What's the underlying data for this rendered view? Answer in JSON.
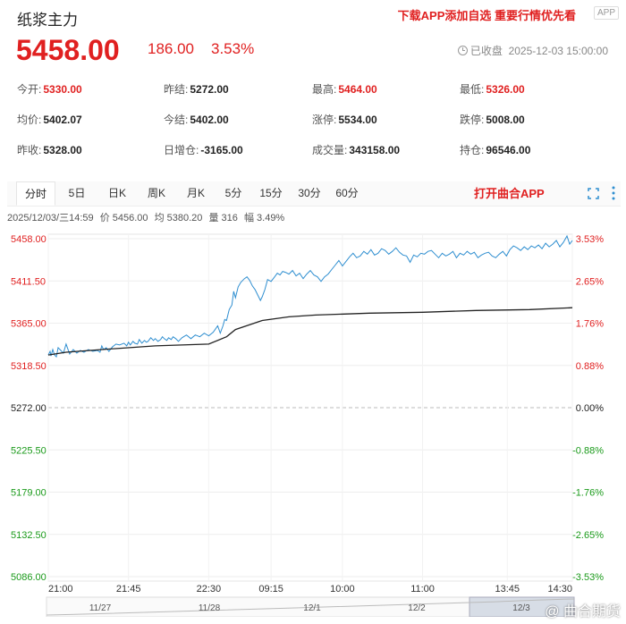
{
  "header": {
    "title": "纸浆主力",
    "promo": "下载APP添加自选 重要行情优先看",
    "badge": "APP"
  },
  "quote": {
    "price": "5458.00",
    "change": "186.00",
    "change_pct": "3.53%",
    "status": "已收盘",
    "datetime": "2025-12-03 15:00:00"
  },
  "stats": [
    {
      "label": "今开:",
      "value": "5330.00",
      "color": "red"
    },
    {
      "label": "昨结:",
      "value": "5272.00",
      "color": "black"
    },
    {
      "label": "最高:",
      "value": "5464.00",
      "color": "red"
    },
    {
      "label": "最低:",
      "value": "5326.00",
      "color": "red"
    },
    {
      "label": "均价:",
      "value": "5402.07",
      "color": "black"
    },
    {
      "label": "今结:",
      "value": "5402.00",
      "color": "black"
    },
    {
      "label": "涨停:",
      "value": "5534.00",
      "color": "black"
    },
    {
      "label": "跌停:",
      "value": "5008.00",
      "color": "black"
    },
    {
      "label": "昨收:",
      "value": "5328.00",
      "color": "black"
    },
    {
      "label": "日增仓:",
      "value": "-3165.00",
      "color": "black"
    },
    {
      "label": "成交量:",
      "value": "343158.00",
      "color": "black"
    },
    {
      "label": "持仓:",
      "value": "96546.00",
      "color": "black"
    }
  ],
  "tabs": [
    "分时",
    "5日",
    "日K",
    "周K",
    "月K",
    "5分",
    "15分",
    "30分",
    "60分"
  ],
  "active_tab": "分时",
  "open_app": "打开曲合APP",
  "info": {
    "time": "2025/12/03/三14:59",
    "price": "价 5456.00",
    "avg": "均 5380.20",
    "vol": "量 316",
    "pct": "幅 3.49%"
  },
  "chart_data": {
    "type": "line",
    "y_left_ticks": [
      "5458.00",
      "5411.50",
      "5365.00",
      "5318.50",
      "5272.00",
      "5225.50",
      "5179.00",
      "5132.50",
      "5086.00"
    ],
    "y_right_ticks": [
      "3.53%",
      "2.65%",
      "1.76%",
      "0.88%",
      "0.00%",
      "-0.88%",
      "-1.76%",
      "-2.65%",
      "-3.53%"
    ],
    "ylim": [
      5086,
      5458
    ],
    "x_ticks": [
      "21:00",
      "21:45",
      "22:30",
      "09:15",
      "10:00",
      "11:00",
      "13:45",
      "14:30"
    ],
    "navigator_labels": [
      "11/27",
      "11/28",
      "12/1",
      "12/2",
      "12/3"
    ],
    "series": [
      {
        "name": "价",
        "color": "#2e8ed0",
        "x": [
          0,
          2,
          3,
          5,
          7,
          9,
          11,
          14,
          17,
          20,
          24,
          28,
          32,
          36,
          40,
          45,
          50,
          55,
          58,
          60,
          62,
          65,
          68,
          72,
          76,
          80,
          85,
          88,
          90,
          92,
          95,
          97,
          100,
          102,
          105,
          108,
          110,
          112,
          115,
          118,
          120,
          123,
          126,
          128,
          130,
          133,
          135,
          138,
          140,
          143,
          146,
          150,
          155,
          160,
          165,
          170,
          175,
          180,
          185,
          190,
          193,
          196,
          198,
          200,
          203,
          206,
          208,
          210,
          213,
          216,
          220,
          223,
          226,
          229,
          232,
          235,
          238,
          240,
          243,
          246,
          250,
          254,
          257,
          260,
          263,
          266,
          270,
          274,
          278,
          282,
          286,
          290,
          294,
          298,
          302,
          306,
          310,
          314,
          318,
          322,
          326,
          330,
          334,
          338,
          342,
          346,
          350,
          354,
          358,
          362,
          366,
          370,
          374,
          378,
          382,
          386,
          390,
          394,
          398,
          402,
          406,
          410,
          414,
          418,
          422,
          426,
          430,
          434,
          438,
          442,
          446,
          450,
          454,
          458,
          462,
          466,
          470,
          474,
          478,
          482,
          486,
          490,
          494,
          498,
          502,
          506,
          510,
          514,
          518,
          522,
          526,
          530,
          534,
          538,
          542,
          546,
          550,
          554,
          558,
          562,
          566,
          570,
          574,
          578,
          582,
          585,
          588
        ],
        "y": [
          5330,
          5334,
          5329,
          5336,
          5330,
          5328,
          5338,
          5335,
          5332,
          5342,
          5331,
          5336,
          5332,
          5335,
          5333,
          5336,
          5334,
          5335,
          5333,
          5340,
          5336,
          5338,
          5334,
          5339,
          5342,
          5341,
          5343,
          5340,
          5344,
          5341,
          5345,
          5343,
          5342,
          5347,
          5343,
          5346,
          5344,
          5345,
          5349,
          5346,
          5348,
          5345,
          5347,
          5350,
          5348,
          5346,
          5349,
          5347,
          5350,
          5348,
          5345,
          5349,
          5352,
          5348,
          5352,
          5350,
          5354,
          5351,
          5355,
          5362,
          5354,
          5362,
          5369,
          5368,
          5380,
          5385,
          5400,
          5393,
          5405,
          5410,
          5414,
          5416,
          5412,
          5406,
          5402,
          5396,
          5390,
          5394,
          5402,
          5413,
          5411,
          5416,
          5420,
          5418,
          5422,
          5421,
          5419,
          5423,
          5417,
          5420,
          5414,
          5419,
          5423,
          5418,
          5416,
          5411,
          5416,
          5419,
          5424,
          5429,
          5434,
          5428,
          5433,
          5438,
          5442,
          5437,
          5439,
          5444,
          5441,
          5446,
          5440,
          5442,
          5447,
          5445,
          5441,
          5444,
          5448,
          5443,
          5440,
          5439,
          5432,
          5440,
          5438,
          5442,
          5441,
          5444,
          5445,
          5441,
          5437,
          5442,
          5439,
          5441,
          5444,
          5437,
          5442,
          5440,
          5444,
          5441,
          5443,
          5437,
          5440,
          5442,
          5443,
          5439,
          5437,
          5441,
          5444,
          5439,
          5446,
          5450,
          5448,
          5445,
          5449,
          5446,
          5450,
          5448,
          5451,
          5447,
          5453,
          5449,
          5452,
          5456,
          5449,
          5454,
          5461,
          5452,
          5456
        ]
      },
      {
        "name": "均",
        "color": "#222222",
        "x": [
          0,
          20,
          60,
          120,
          180,
          200,
          210,
          240,
          270,
          300,
          360,
          420,
          480,
          540,
          588
        ],
        "y": [
          5330,
          5333,
          5336,
          5340,
          5342,
          5350,
          5358,
          5368,
          5372,
          5374,
          5376,
          5377,
          5379,
          5380,
          5382
        ]
      }
    ],
    "baseline": 5272,
    "grid": true,
    "legend": "none"
  }
}
